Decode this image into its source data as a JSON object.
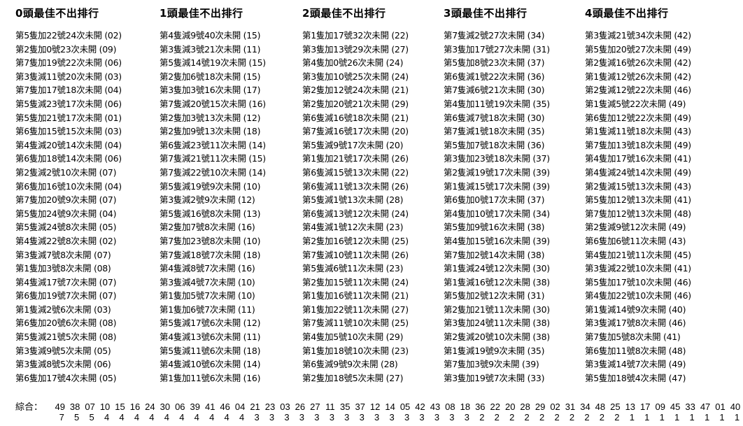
{
  "columns": [
    {
      "title": "0頭最佳不出排行",
      "items": [
        "第5隻加22號24次未開 (02)",
        "第2隻加0號23次未開 (09)",
        "第7隻加19號22次未開 (06)",
        "第3隻減11號20次未開 (03)",
        "第7隻加17號18次未開 (04)",
        "第5隻減23號17次未開 (06)",
        "第5隻加21號17次未開 (01)",
        "第6隻加15號15次未開 (03)",
        "第4隻減20號14次未開 (04)",
        "第6隻加18號14次未開 (06)",
        "第2隻減2號10次未開 (07)",
        "第6隻加16號10次未開 (04)",
        "第7隻加20號9次未開 (07)",
        "第5隻加24號9次未開 (04)",
        "第5隻減24號8次未開 (05)",
        "第4隻減22號8次未開 (02)",
        "第3隻減7號8次未開 (07)",
        "第1隻加3號8次未開 (08)",
        "第4隻減17號7次未開 (07)",
        "第6隻加19號7次未開 (07)",
        "第1隻減2號6次未開 (03)",
        "第6隻加20號6次未開 (08)",
        "第5隻減21號5次未開 (08)",
        "第3隻減9號5次未開 (05)",
        "第3隻減8號5次未開 (06)",
        "第6隻加17號4次未開 (05)"
      ]
    },
    {
      "title": "1頭最佳不出排行",
      "items": [
        "第4隻減9號40次未開 (15)",
        "第3隻減3號21次未開 (11)",
        "第5隻減14號19次未開 (15)",
        "第2隻加6號18次未開 (15)",
        "第3隻加3號16次未開 (17)",
        "第7隻減20號15次未開 (16)",
        "第2隻加3號13次未開 (12)",
        "第2隻加9號13次未開 (18)",
        "第6隻減23號11次未開 (14)",
        "第7隻減21號11次未開 (15)",
        "第7隻減22號10次未開 (14)",
        "第5隻減19號9次未開 (10)",
        "第3隻減2號9次未開 (12)",
        "第5隻減16號8次未開 (13)",
        "第2隻加7號8次未開 (16)",
        "第7隻加23號8次未開 (10)",
        "第7隻減18號7次未開 (18)",
        "第4隻減8號7次未開 (16)",
        "第3隻減4號7次未開 (10)",
        "第1隻加5號7次未開 (10)",
        "第1隻加6號7次未開 (11)",
        "第5隻減17號6次未開 (12)",
        "第4隻減13號6次未開 (11)",
        "第5隻減11號6次未開 (18)",
        "第4隻減10號6次未開 (14)",
        "第1隻加11號6次未開 (16)"
      ]
    },
    {
      "title": "2頭最佳不出排行",
      "items": [
        "第1隻加17號32次未開 (22)",
        "第3隻加13號29次未開 (27)",
        "第4隻加0號26次未開 (24)",
        "第3隻加10號25次未開 (24)",
        "第2隻加12號24次未開 (21)",
        "第2隻加20號21次未開 (29)",
        "第6隻減16號18次未開 (21)",
        "第7隻減16號17次未開 (20)",
        "第5隻減9號17次未開 (20)",
        "第1隻加21號17次未開 (26)",
        "第6隻減15號13次未開 (22)",
        "第6隻減11號13次未開 (26)",
        "第5隻減1號13次未開 (28)",
        "第6隻減13號12次未開 (24)",
        "第4隻減1號12次未開 (23)",
        "第2隻加16號12次未開 (25)",
        "第7隻減10號11次未開 (26)",
        "第5隻減6號11次未開 (23)",
        "第2隻加15號11次未開 (24)",
        "第1隻加16號11次未開 (21)",
        "第1隻加22號11次未開 (27)",
        "第7隻減11號10次未開 (25)",
        "第4隻加5號10次未開 (29)",
        "第1隻加18號10次未開 (23)",
        "第6隻減9號9次未開 (28)",
        "第2隻加18號5次未開 (27)"
      ]
    },
    {
      "title": "3頭最佳不出排行",
      "items": [
        "第7隻減2號27次未開 (34)",
        "第3隻加17號27次未開 (31)",
        "第5隻加8號23次未開 (37)",
        "第6隻減1號22次未開 (36)",
        "第7隻減6號21次未開 (30)",
        "第4隻加11號19次未開 (35)",
        "第6隻減7號18次未開 (30)",
        "第7隻減1號18次未開 (35)",
        "第5隻加7號18次未開 (36)",
        "第3隻加23號18次未開 (37)",
        "第2隻減19號17次未開 (39)",
        "第1隻減15號17次未開 (39)",
        "第6隻加0號17次未開 (37)",
        "第4隻加10號17次未開 (34)",
        "第5隻加9號16次未開 (38)",
        "第4隻加15號16次未開 (39)",
        "第7隻加2號14次未開 (38)",
        "第1隻減24號12次未開 (30)",
        "第1隻減16號12次未開 (38)",
        "第5隻加2號12次未開 (31)",
        "第2隻加21號11次未開 (30)",
        "第3隻加24號11次未開 (38)",
        "第2隻減20號10次未開 (38)",
        "第1隻減19號9次未開 (35)",
        "第7隻加3號9次未開 (39)",
        "第3隻加19號7次未開 (33)"
      ]
    },
    {
      "title": "4頭最佳不出排行",
      "items": [
        "第3隻減21號34次未開 (42)",
        "第5隻加20號27次未開 (49)",
        "第2隻減16號26次未開 (42)",
        "第1隻減12號26次未開 (42)",
        "第2隻減12號22次未開 (46)",
        "第1隻減5號22次未開 (49)",
        "第6隻加12號22次未開 (49)",
        "第1隻減11號18次未開 (43)",
        "第7隻加13號18次未開 (49)",
        "第4隻加17號16次未開 (41)",
        "第4隻減24號14次未開 (49)",
        "第2隻減15號13次未開 (43)",
        "第5隻加12號13次未開 (41)",
        "第7隻加12號13次未開 (48)",
        "第2隻減9號12次未開 (49)",
        "第6隻加6號11次未開 (43)",
        "第4隻加21號11次未開 (45)",
        "第3隻減22號10次未開 (41)",
        "第5隻加17號10次未開 (46)",
        "第4隻加22號10次未開 (46)",
        "第1隻減14號9次未開 (40)",
        "第3隻減17號8次未開 (46)",
        "第7隻加5號8次未開 (41)",
        "第6隻加11號8次未開 (48)",
        "第3隻減14號7次未開 (49)",
        "第5隻加18號4次未開 (47)"
      ]
    }
  ],
  "summary": {
    "label": "綜合：",
    "numbers": [
      "49",
      "38",
      "07",
      "10",
      "15",
      "16",
      "24",
      "30",
      "06",
      "39",
      "41",
      "46",
      "04",
      "21",
      "23",
      "03",
      "26",
      "27",
      "11",
      "35",
      "37",
      "12",
      "14",
      "05",
      "42",
      "43",
      "08",
      "18",
      "36",
      "22",
      "20",
      "28",
      "29",
      "02",
      "31",
      "34",
      "48",
      "25",
      "13",
      "17",
      "09",
      "45",
      "33",
      "47",
      "01",
      "40"
    ],
    "counts": [
      "7",
      "5",
      "5",
      "4",
      "4",
      "4",
      "4",
      "4",
      "4",
      "4",
      "4",
      "4",
      "4",
      "3",
      "3",
      "3",
      "3",
      "3",
      "3",
      "3",
      "3",
      "3",
      "3",
      "3",
      "3",
      "3",
      "3",
      "3",
      "2",
      "2",
      "2",
      "2",
      "2",
      "2",
      "2",
      "2",
      "2",
      "2",
      "1",
      "1",
      "1",
      "1",
      "1",
      "1",
      "1",
      "1"
    ]
  }
}
